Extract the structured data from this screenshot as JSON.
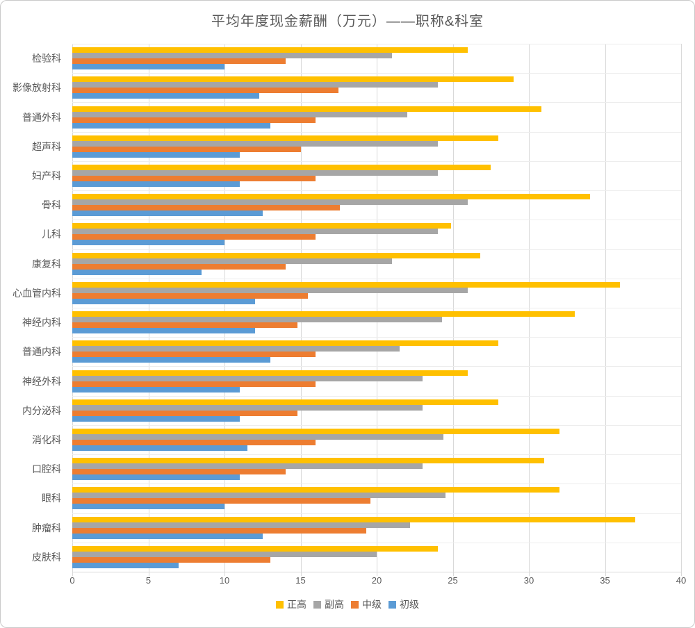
{
  "chart_data": {
    "type": "bar",
    "orientation": "horizontal",
    "title": "平均年度现金薪酬（万元）——职称&科室",
    "categories": [
      "检验科",
      "影像放射科",
      "普通外科",
      "超声科",
      "妇产科",
      "骨科",
      "儿科",
      "康复科",
      "心血管内科",
      "神经内科",
      "普通内科",
      "神经外科",
      "内分泌科",
      "消化科",
      "口腔科",
      "眼科",
      "肿瘤科",
      "皮肤科"
    ],
    "series": [
      {
        "key": "full-senior",
        "name": "正高",
        "color": "#FFC000",
        "values": [
          26,
          29,
          30.8,
          28,
          27.5,
          34,
          24.9,
          26.8,
          36,
          33,
          28,
          26,
          28,
          32,
          31,
          32,
          37,
          24
        ]
      },
      {
        "key": "deputy-senior",
        "name": "副高",
        "color": "#A6A6A6",
        "values": [
          21,
          24,
          22,
          24,
          24,
          26,
          24,
          21,
          26,
          24.3,
          21.5,
          23,
          23,
          24.4,
          23,
          24.5,
          22.2,
          20
        ]
      },
      {
        "key": "intermediate",
        "name": "中级",
        "color": "#ED7D31",
        "values": [
          14,
          17.5,
          16,
          15,
          16,
          17.6,
          16,
          14,
          15.5,
          14.8,
          16,
          16,
          14.8,
          16,
          14,
          19.6,
          19.3,
          13
        ]
      },
      {
        "key": "junior",
        "name": "初级",
        "color": "#5B9BD5",
        "values": [
          10,
          12.3,
          13,
          11,
          11,
          12.5,
          10,
          8.5,
          12,
          12,
          13,
          11,
          11,
          11.5,
          11,
          10,
          12.5,
          7
        ]
      }
    ],
    "xlim": [
      0,
      40
    ],
    "xticks": [
      0,
      5,
      10,
      15,
      20,
      25,
      30,
      35,
      40
    ],
    "grid": true,
    "legend_position": "bottom"
  },
  "style": {
    "gridline_color": "#d9d9d9",
    "separator_color": "#ededed",
    "text_color": "#595959",
    "background": "#ffffff"
  }
}
